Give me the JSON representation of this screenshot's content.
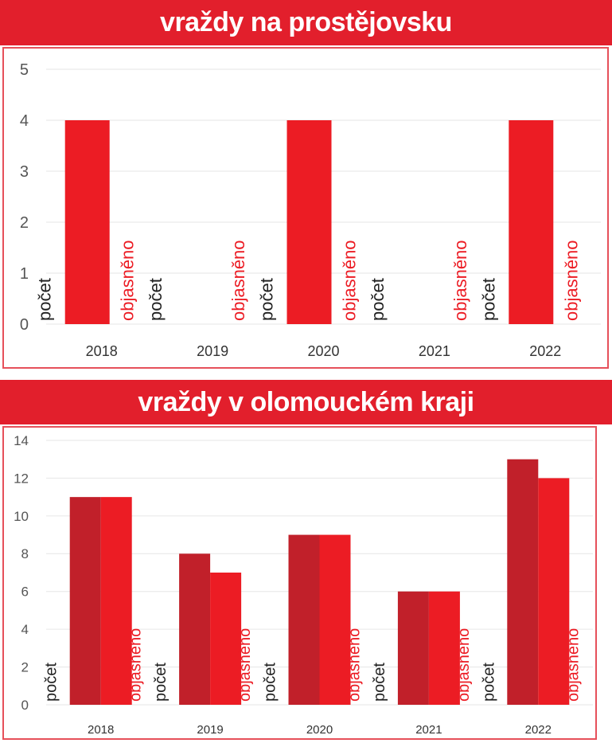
{
  "chart_data": [
    {
      "type": "bar",
      "title": "vraždy na prostějovsku",
      "categories": [
        "2018",
        "2019",
        "2020",
        "2021",
        "2022"
      ],
      "series_labels": [
        "počet",
        "objasněno"
      ],
      "series": [
        {
          "values": [
            4,
            0,
            4,
            0,
            4
          ],
          "color": "#ec1c24"
        },
        {
          "values": [
            0,
            0,
            0,
            0,
            0
          ],
          "color": "#ec1c24"
        }
      ],
      "yticks": [
        "0",
        "1",
        "2",
        "3",
        "4",
        "5"
      ],
      "ylim": [
        0,
        5
      ],
      "grid": true
    },
    {
      "type": "bar",
      "title": "vraždy v olomouckém kraji",
      "categories": [
        "2018",
        "2019",
        "2020",
        "2021",
        "2022"
      ],
      "series_labels": [
        "počet",
        "objasněno"
      ],
      "series": [
        {
          "values": [
            11,
            8,
            9,
            6,
            13
          ],
          "color": "#c1202a"
        },
        {
          "values": [
            11,
            7,
            9,
            6,
            12
          ],
          "color": "#ec1c24"
        }
      ],
      "yticks": [
        "0",
        "2",
        "4",
        "6",
        "8",
        "10",
        "12",
        "14"
      ],
      "ylim": [
        0,
        14
      ],
      "grid": true
    }
  ],
  "colors": {
    "banner": "#e21f2c",
    "label_pocet": "#222222",
    "label_objasneno": "#ec1c24",
    "grid": "#e6e6e6",
    "frame": "#e6505a"
  }
}
